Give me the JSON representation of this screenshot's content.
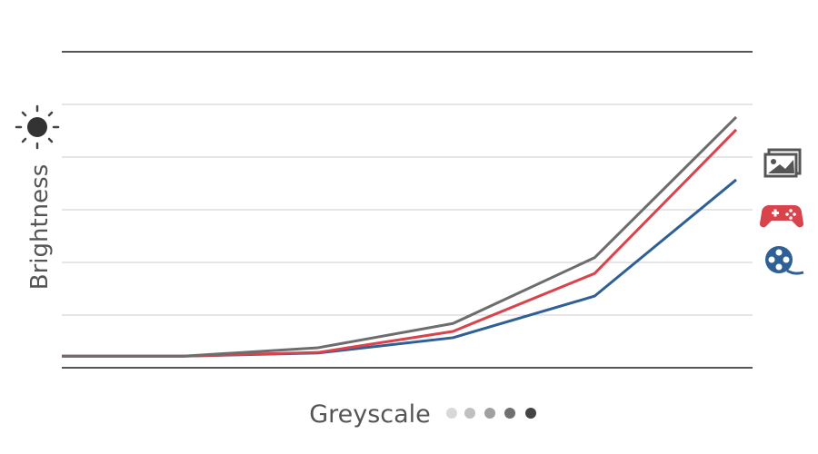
{
  "chart_data": {
    "type": "line",
    "x_label": "Greyscale",
    "y_label": "Brightness",
    "x": [
      0,
      0.9,
      1.9,
      2.9,
      3.95,
      5
    ],
    "xlim": [
      0,
      5
    ],
    "ylim": [
      0,
      6
    ],
    "yticks": [
      0,
      1,
      2,
      3,
      4,
      5,
      6
    ],
    "grid": true,
    "series": [
      {
        "color": "#2e5f96",
        "values": [
          0.22,
          0.22,
          0.28,
          0.57,
          1.36,
          3.57
        ]
      },
      {
        "color": "#d9434b",
        "values": [
          0.22,
          0.22,
          0.29,
          0.69,
          1.79,
          4.52
        ]
      },
      {
        "color": "#6d6d6d",
        "values": [
          0.22,
          0.22,
          0.38,
          0.84,
          2.09,
          4.76
        ]
      }
    ]
  }
}
